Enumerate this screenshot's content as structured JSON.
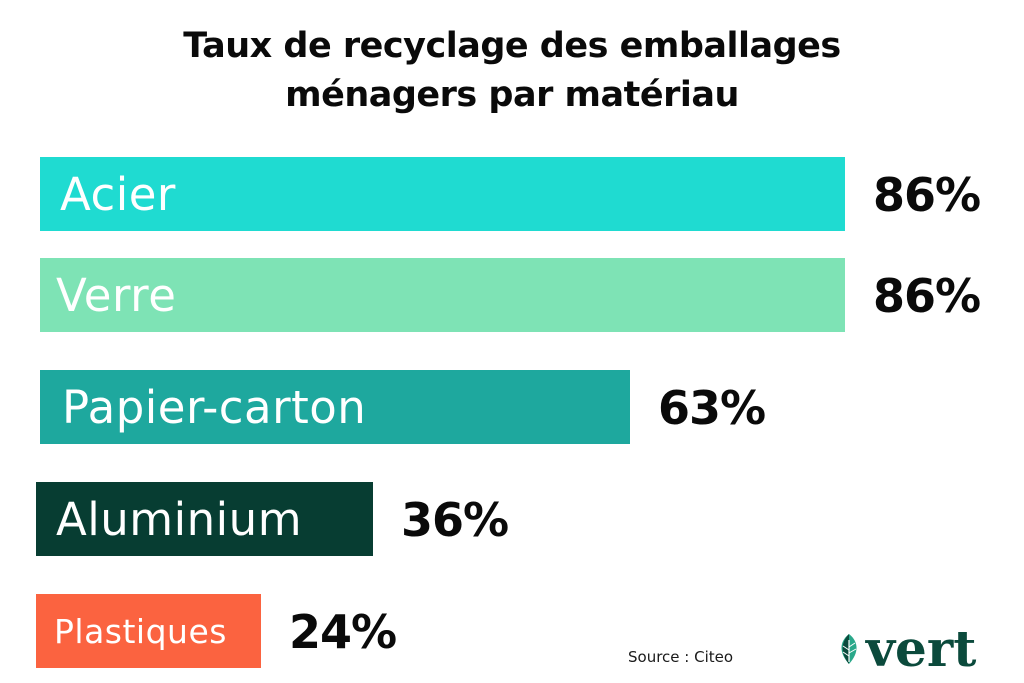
{
  "chart_data": {
    "type": "bar",
    "orientation": "horizontal",
    "title_lines": [
      "Taux de recyclage des emballages",
      "ménagers par matériau"
    ],
    "categories": [
      "Acier",
      "Verre",
      "Papier-carton",
      "Aluminium",
      "Plastiques"
    ],
    "values": [
      86,
      86,
      63,
      36,
      24
    ],
    "value_labels": [
      "86%",
      "86%",
      "63%",
      "36%",
      "24%"
    ],
    "colors": [
      "#1fdbd1",
      "#7ee3b5",
      "#1ea89e",
      "#073d32",
      "#fb6340"
    ],
    "value_unit": "%",
    "grid": false,
    "legend": "none"
  },
  "source": "Source : Citeo",
  "logo": {
    "text": "vert",
    "icon": "leaf-icon",
    "color": "#0b4a3c",
    "leaf_colors": [
      "#2aa88a",
      "#0b4a3c"
    ]
  }
}
